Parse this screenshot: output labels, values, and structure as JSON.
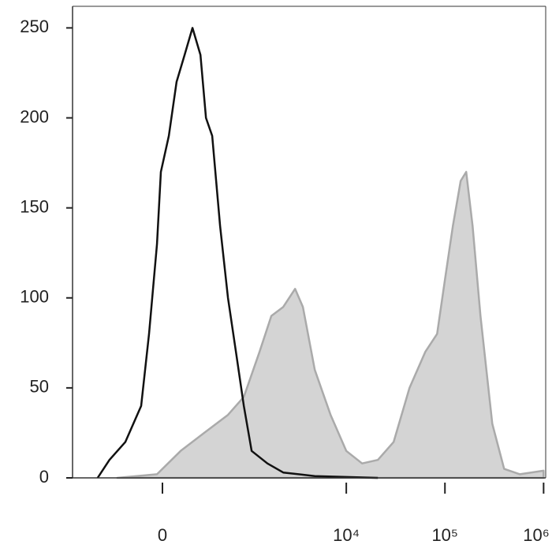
{
  "chart_data": {
    "type": "histogram-overlay",
    "xscale": "biexponential",
    "xlim": [
      -1100,
      1050000
    ],
    "xticks": [
      0,
      {
        "value": 10000,
        "label": "10⁴"
      },
      {
        "value": 100000,
        "label": "10⁵"
      },
      {
        "value": 1000000,
        "label": "10⁶"
      }
    ],
    "ylim": [
      0,
      262
    ],
    "yticks": [
      0,
      50,
      100,
      150,
      200,
      250
    ],
    "series": [
      {
        "color": "#aaaaaa",
        "fill": "#d4d4d4",
        "x": [
          -345,
          -35,
          120,
          312,
          602,
          894,
          1305,
          1730,
          2290,
          3020,
          3630,
          4790,
          6930,
          10000,
          14460,
          20900,
          30200,
          43700,
          63200,
          83300,
          100000,
          120300,
          144500,
          164400,
          190700,
          229000,
          302000,
          398000,
          575000,
          1000000
        ],
        "values": [
          0,
          2,
          15,
          25,
          35,
          45,
          70,
          90,
          95,
          105,
          95,
          60,
          35,
          15,
          8,
          10,
          20,
          50,
          70,
          80,
          110,
          140,
          165,
          170,
          140,
          90,
          30,
          5,
          2,
          4
        ]
      },
      {
        "color": "#111111",
        "x": [
          -592,
          -432,
          -268,
          -142,
          -87,
          -35,
          -10,
          41,
          92,
          148,
          208,
          276,
          329,
          395,
          490,
          602,
          736,
          894,
          1080,
          1576,
          2290,
          4790,
          20900
        ],
        "values": [
          0,
          10,
          20,
          40,
          80,
          130,
          170,
          190,
          220,
          235,
          250,
          235,
          200,
          190,
          140,
          100,
          70,
          40,
          15,
          8,
          3,
          1,
          0
        ]
      }
    ]
  }
}
